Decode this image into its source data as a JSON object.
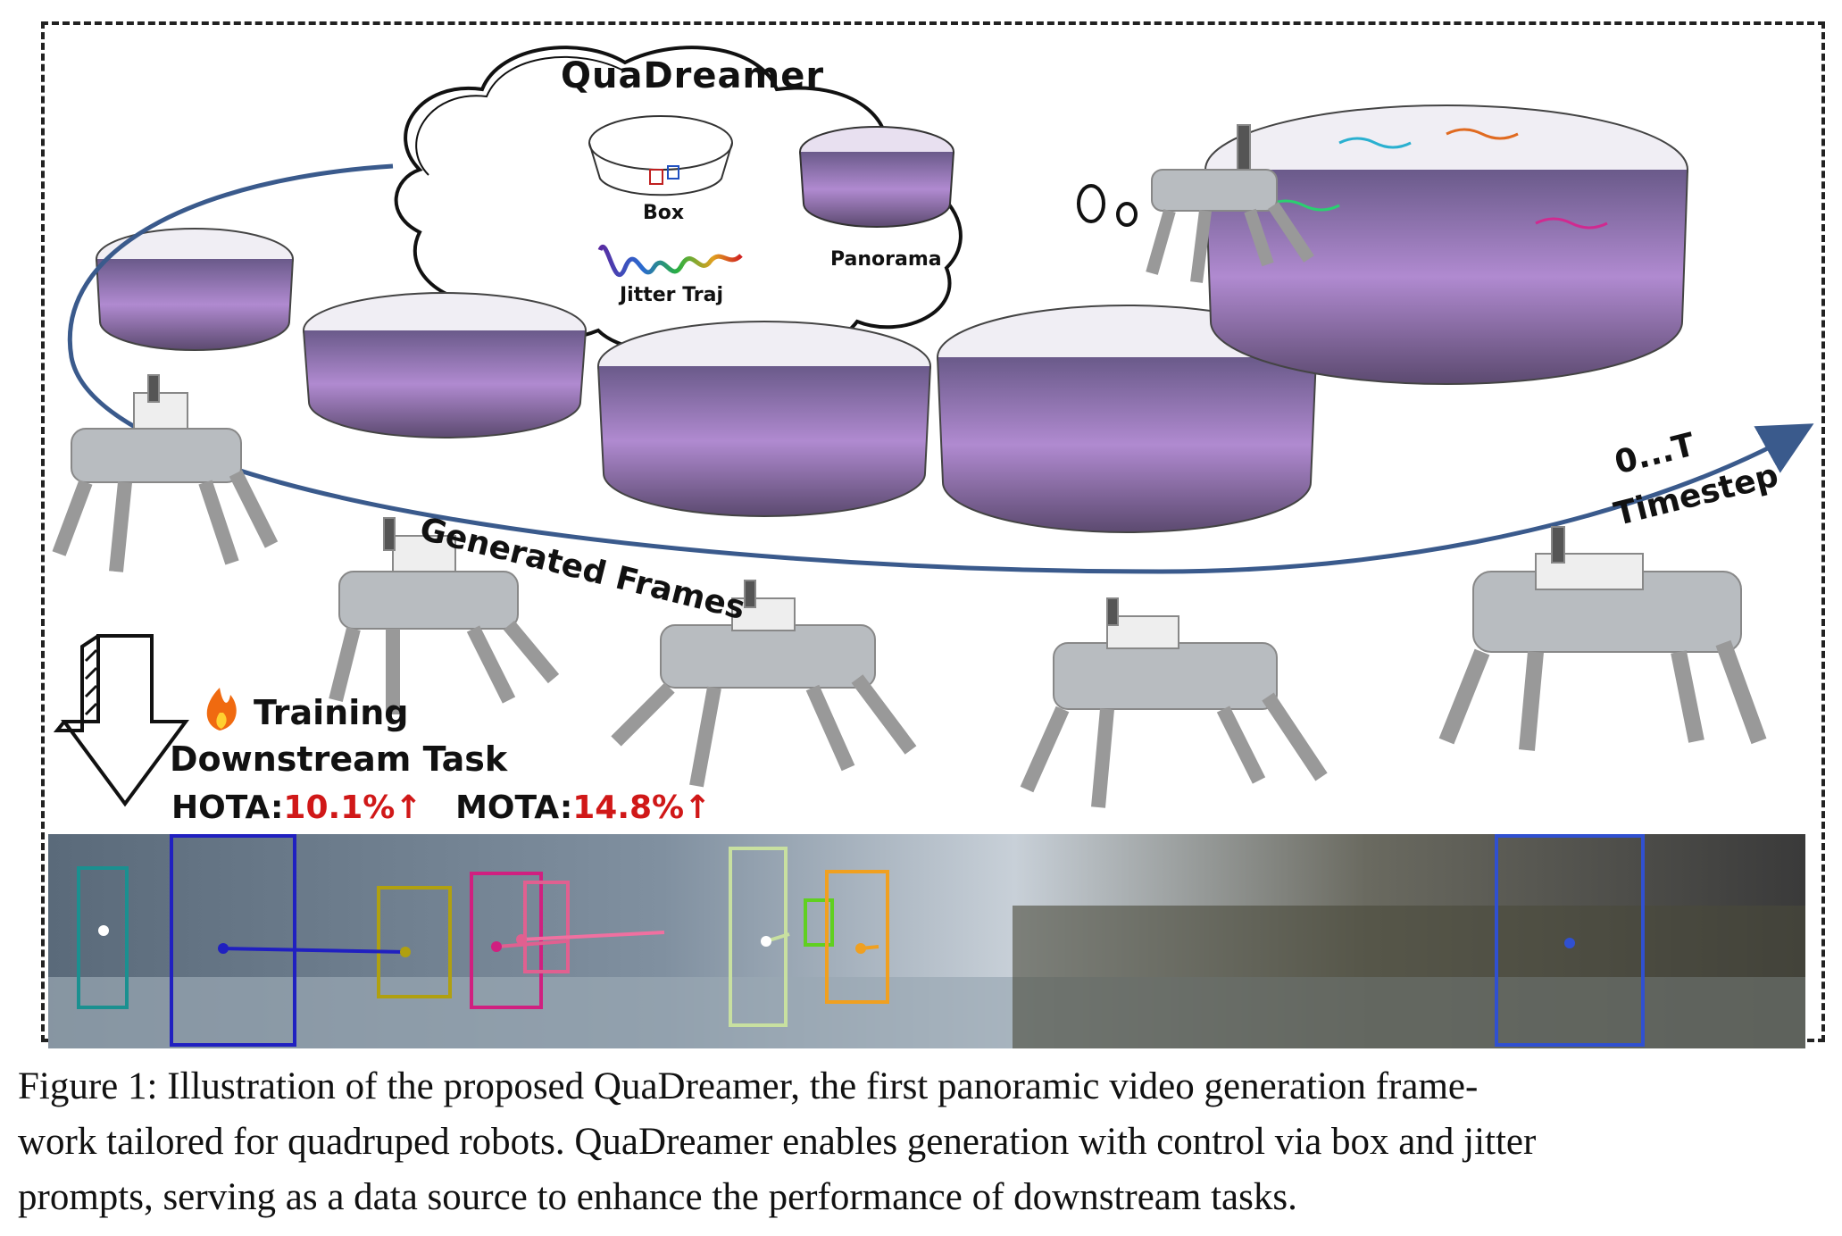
{
  "figure": {
    "cloud_title": "QuaDreamer",
    "box_label": "Box",
    "jitter_label": "Jitter Traj",
    "panorama_label": "Panorama",
    "generated_frames_label": "Generated Frames",
    "range_label": "0...T",
    "timestep_label": "Timestep",
    "training_label": "Training",
    "downstream_label": "Downstream Task",
    "hota_label": "HOTA:",
    "hota_value": "10.1%↑",
    "mota_label": "MOTA:",
    "mota_value": "14.8%↑",
    "fire_icon": "fire-icon",
    "colors": {
      "arrow": "#3a5a8c",
      "accent_red": "#d01818"
    }
  },
  "caption": {
    "line1": "Figure 1: Illustration of the proposed QuaDreamer, the first panoramic video generation frame-",
    "line2": "work tailored for quadruped robots. QuaDreamer enables generation with control via box and jitter",
    "line3": "prompts, serving as a data source to enhance the performance of downstream tasks."
  }
}
